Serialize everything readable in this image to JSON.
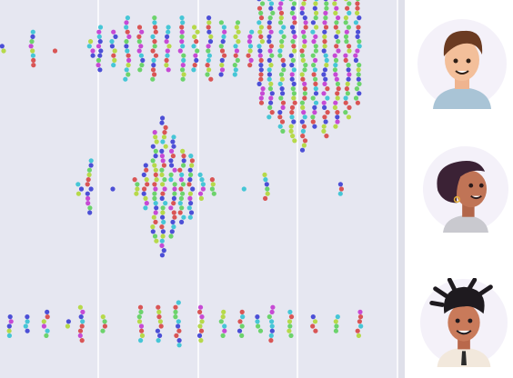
{
  "colors": {
    "panel_bg": "#e6e7f1",
    "gridline": "#ffffff",
    "right_bg": "#ffffff",
    "avatar_bg": "#f4f1f9",
    "dot_palette": [
      "#d95555",
      "#4c4fd6",
      "#46c6d6",
      "#b6d94a",
      "#6cd36c",
      "#c64ad4"
    ]
  },
  "avatars": [
    {
      "icon": "man-short-hair-avatar-icon"
    },
    {
      "icon": "woman-curly-hair-avatar-icon"
    },
    {
      "icon": "man-dreadlocks-avatar-icon"
    }
  ],
  "chart_data": {
    "type": "scatter",
    "subtype": "beeswarm",
    "title": "",
    "xlabel": "",
    "ylabel": "",
    "rows": 3,
    "vertical_gridlines": 4,
    "grid": true,
    "legend": "none",
    "series": [
      {
        "row": 1,
        "clusters": [
          {
            "x": 4,
            "n": 2
          },
          {
            "x": 36,
            "n": 8
          },
          {
            "x": 62,
            "n": 1
          },
          {
            "x": 100,
            "n": 4
          },
          {
            "x": 110,
            "n": 10
          },
          {
            "x": 125,
            "n": 8
          },
          {
            "x": 140,
            "n": 14
          },
          {
            "x": 155,
            "n": 10
          },
          {
            "x": 170,
            "n": 14
          },
          {
            "x": 185,
            "n": 10
          },
          {
            "x": 200,
            "n": 14
          },
          {
            "x": 215,
            "n": 10
          },
          {
            "x": 230,
            "n": 14
          },
          {
            "x": 245,
            "n": 12
          },
          {
            "x": 260,
            "n": 12
          },
          {
            "x": 275,
            "n": 8
          },
          {
            "x": 287,
            "n": 24
          },
          {
            "x": 298,
            "n": 30
          },
          {
            "x": 310,
            "n": 36
          },
          {
            "x": 322,
            "n": 40
          },
          {
            "x": 334,
            "n": 44
          },
          {
            "x": 346,
            "n": 34
          },
          {
            "x": 358,
            "n": 38
          },
          {
            "x": 370,
            "n": 34
          },
          {
            "x": 382,
            "n": 30
          },
          {
            "x": 393,
            "n": 24
          }
        ]
      },
      {
        "row": 2,
        "clusters": [
          {
            "x": 88,
            "n": 3
          },
          {
            "x": 98,
            "n": 12
          },
          {
            "x": 122,
            "n": 1
          },
          {
            "x": 150,
            "n": 4
          },
          {
            "x": 160,
            "n": 10
          },
          {
            "x": 170,
            "n": 24
          },
          {
            "x": 180,
            "n": 30
          },
          {
            "x": 190,
            "n": 22
          },
          {
            "x": 200,
            "n": 16
          },
          {
            "x": 210,
            "n": 14
          },
          {
            "x": 222,
            "n": 6
          },
          {
            "x": 235,
            "n": 4
          },
          {
            "x": 270,
            "n": 1
          },
          {
            "x": 292,
            "n": 6
          },
          {
            "x": 375,
            "n": 3
          }
        ]
      },
      {
        "row": 3,
        "clusters": [
          {
            "x": 10,
            "n": 5
          },
          {
            "x": 30,
            "n": 4
          },
          {
            "x": 50,
            "n": 6
          },
          {
            "x": 75,
            "n": 2
          },
          {
            "x": 90,
            "n": 8
          },
          {
            "x": 115,
            "n": 4
          },
          {
            "x": 155,
            "n": 8
          },
          {
            "x": 175,
            "n": 8
          },
          {
            "x": 195,
            "n": 10
          },
          {
            "x": 220,
            "n": 8
          },
          {
            "x": 245,
            "n": 6
          },
          {
            "x": 265,
            "n": 6
          },
          {
            "x": 285,
            "n": 4
          },
          {
            "x": 298,
            "n": 8
          },
          {
            "x": 320,
            "n": 6
          },
          {
            "x": 345,
            "n": 4
          },
          {
            "x": 370,
            "n": 4
          },
          {
            "x": 395,
            "n": 6
          }
        ]
      }
    ]
  }
}
